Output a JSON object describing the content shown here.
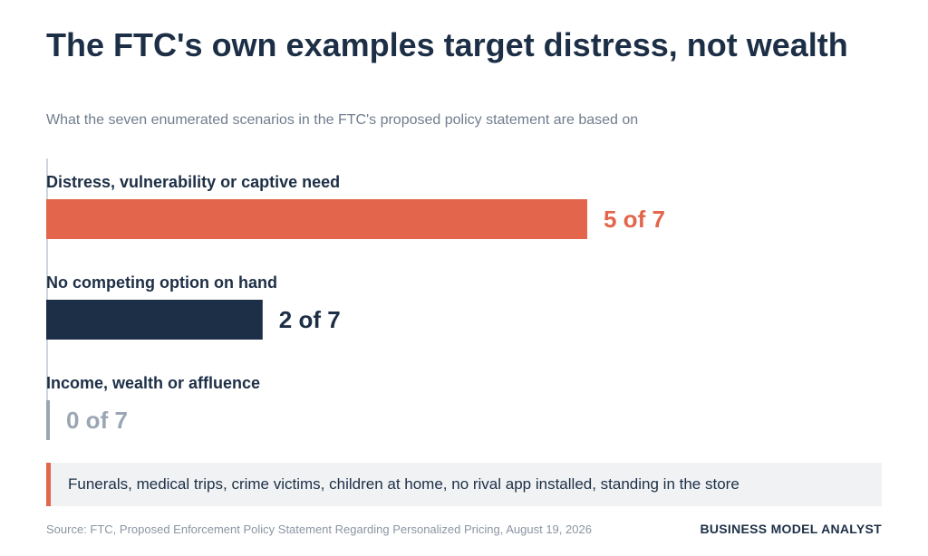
{
  "title": "The FTC's own examples target distress, not wealth",
  "subtitle": "What the seven enumerated scenarios in the FTC's proposed policy statement are based on",
  "chart_data": {
    "type": "bar",
    "orientation": "horizontal",
    "total": 7,
    "categories": [
      "Distress, vulnerability or captive need",
      "No competing option on hand",
      "Income, wealth or affluence"
    ],
    "values": [
      5,
      2,
      0
    ],
    "value_labels": [
      "5 of 7",
      "2 of 7",
      "0 of 7"
    ],
    "colors": [
      "#e2654c",
      "#1d2f46",
      "#9aa6b3"
    ],
    "xlim": [
      0,
      7
    ],
    "grid": false,
    "legend": "none"
  },
  "callout": {
    "text": "Funerals, medical trips, crime victims, children at home, no rival app installed, standing in the store",
    "accent_color": "#e2654c"
  },
  "footer": {
    "source": "Source: FTC, Proposed Enforcement Policy Statement Regarding Personalized Pricing, August 19, 2026",
    "brand": "BUSINESS MODEL ANALYST"
  }
}
